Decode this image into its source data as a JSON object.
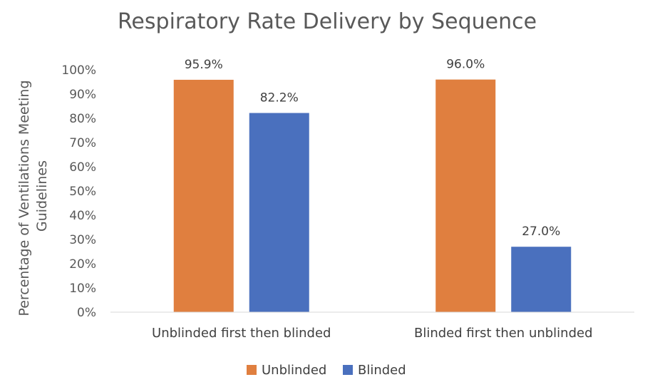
{
  "chart_data": {
    "type": "bar",
    "title": "Respiratory Rate Delivery by Sequence",
    "xlabel": "",
    "ylabel_lines": [
      "Percentage of Ventilations Meeting",
      "Guidelines"
    ],
    "categories": [
      "Unblinded first then blinded",
      "Blinded first then unblinded"
    ],
    "series": [
      {
        "name": "Unblinded",
        "color": "#E07F3F",
        "values": [
          95.9,
          96.0
        ],
        "labels": [
          "95.9%",
          "96.0%"
        ]
      },
      {
        "name": "Blinded",
        "color": "#4A70BE",
        "values": [
          82.2,
          27.0
        ],
        "labels": [
          "82.2%",
          "27.0%"
        ]
      }
    ],
    "ylim": [
      0,
      100
    ],
    "yticks": [
      0,
      10,
      20,
      30,
      40,
      50,
      60,
      70,
      80,
      90,
      100
    ],
    "ytick_labels": [
      "0%",
      "10%",
      "20%",
      "30%",
      "40%",
      "50%",
      "60%",
      "70%",
      "80%",
      "90%",
      "100%"
    ],
    "grid": false,
    "legend_position": "bottom"
  }
}
